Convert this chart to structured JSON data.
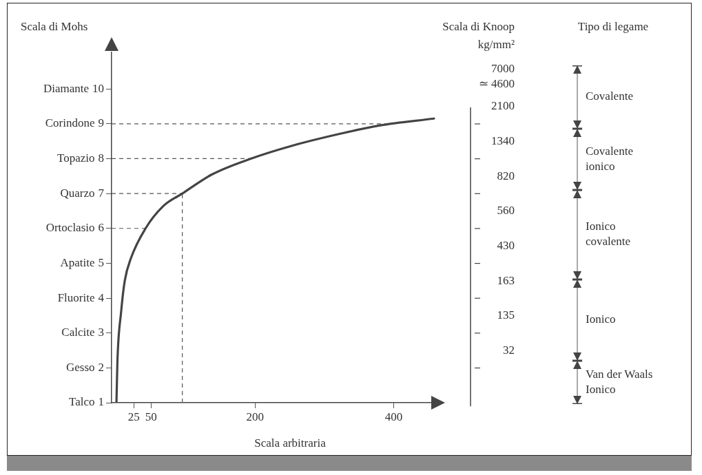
{
  "chart_data": {
    "type": "line",
    "ylabel": "Scala di Mohs",
    "xlabel": "Scala arbitraria",
    "xlim": [
      -7,
      468
    ],
    "xticks": [
      25,
      50,
      200,
      400
    ],
    "ylim": [
      1,
      11.05
    ],
    "yticks": [
      1,
      2,
      3,
      4,
      5,
      6,
      7,
      8,
      9,
      10
    ],
    "series": [
      {
        "type": "line",
        "color": "#444444",
        "x": [
          0,
          1.4,
          6.7,
          12,
          21,
          42,
          67,
          95,
          138,
          191,
          255,
          326,
          379,
          458
        ],
        "values": [
          1,
          2.2,
          3.6,
          4.5,
          5.15,
          6,
          6.63,
          7,
          7.55,
          7.98,
          8.38,
          8.73,
          8.95,
          9.15
        ]
      }
    ],
    "ref_lines": [
      {
        "axis": "y",
        "value": 6,
        "line_style": "dashed",
        "color": "#555555"
      },
      {
        "axis": "y",
        "value": 7,
        "line_style": "dashed",
        "color": "#555555"
      },
      {
        "axis": "y",
        "value": 8,
        "line_style": "dashed",
        "color": "#555555"
      },
      {
        "axis": "y",
        "value": 9,
        "line_style": "dashed",
        "color": "#555555"
      },
      {
        "axis": "x",
        "value": 95,
        "line_style": "dashed",
        "color": "#555555"
      }
    ],
    "annotations": [
      "Scala di Knoop",
      "kg/mm²",
      "Tipo di legame",
      "Talco",
      "Gesso",
      "Calcite",
      "Fluorite",
      "Apatite",
      "Ortoclasio",
      "Quarzo",
      "Topazio",
      "Corindone",
      "Diamante",
      "7000",
      "≃ 4600",
      "2100",
      "1340",
      "820",
      "560",
      "430",
      "163",
      "135",
      "32",
      "Covalente",
      "Covalente ionico",
      "Ionico covalente",
      "Ionico",
      "Van der Waals Ionico"
    ],
    "grid": false,
    "legend": false,
    "marker": "none",
    "line_style": "solid"
  }
}
